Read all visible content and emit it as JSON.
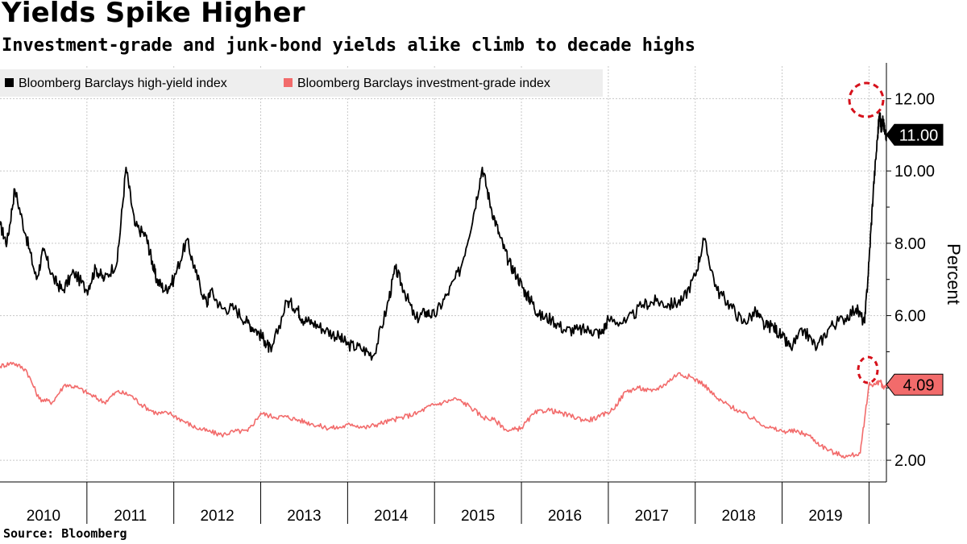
{
  "header": {
    "title": "Yields Spike Higher",
    "subtitle": "Investment-grade and junk-bond yields alike climb to decade highs"
  },
  "footer": {
    "source": "Source: Bloomberg"
  },
  "colors": {
    "high_yield": "#000000",
    "investment_grade": "#f26b6b",
    "highlight_circle": "#d6111b",
    "legend_bg": "#eeeeee",
    "grid": "#c8c8c8"
  },
  "chart_data": {
    "type": "line",
    "title": "Yields Spike Higher",
    "subtitle": "Investment-grade and junk-bond yields alike climb to decade highs",
    "xlabel": "",
    "ylabel": "Percent",
    "ylim": [
      1.4,
      12.9
    ],
    "xlim": [
      2010.0,
      2020.2
    ],
    "yticks": [
      2.0,
      6.0,
      8.0,
      10.0,
      12.0
    ],
    "ytick_labels": [
      "2.00",
      "6.00",
      "8.00",
      "10.00",
      "12.00"
    ],
    "x_categories": [
      "2010",
      "2011",
      "2012",
      "2013",
      "2014",
      "2015",
      "2016",
      "2017",
      "2018",
      "2019"
    ],
    "grid": true,
    "legend_position": "top-left",
    "series": [
      {
        "name": "Bloomberg Barclays high-yield index",
        "color": "#000000",
        "x": [
          2010.0,
          2010.08,
          2010.17,
          2010.3,
          2010.42,
          2010.5,
          2010.62,
          2010.72,
          2010.85,
          2011.0,
          2011.1,
          2011.2,
          2011.35,
          2011.45,
          2011.55,
          2011.68,
          2011.75,
          2011.8,
          2011.9,
          2012.0,
          2012.15,
          2012.25,
          2012.38,
          2012.42,
          2012.55,
          2012.7,
          2012.85,
          2012.95,
          2013.05,
          2013.12,
          2013.3,
          2013.42,
          2013.48,
          2013.6,
          2013.75,
          2013.9,
          2014.0,
          2014.15,
          2014.3,
          2014.45,
          2014.55,
          2014.65,
          2014.78,
          2014.9,
          2015.0,
          2015.15,
          2015.3,
          2015.45,
          2015.55,
          2015.65,
          2015.75,
          2015.85,
          2015.95,
          2016.05,
          2016.12,
          2016.2,
          2016.35,
          2016.5,
          2016.65,
          2016.8,
          2016.92,
          2017.0,
          2017.2,
          2017.4,
          2017.55,
          2017.7,
          2017.85,
          2018.0,
          2018.1,
          2018.25,
          2018.4,
          2018.55,
          2018.7,
          2018.8,
          2018.9,
          2019.0,
          2019.1,
          2019.25,
          2019.4,
          2019.55,
          2019.7,
          2019.85,
          2019.95,
          2020.0,
          2020.05,
          2020.1,
          2020.12,
          2020.14,
          2020.16,
          2020.18,
          2020.2
        ],
        "y": [
          8.5,
          8.0,
          9.5,
          8.2,
          7.0,
          7.8,
          7.0,
          6.7,
          7.2,
          6.7,
          7.3,
          7.0,
          7.5,
          10.1,
          8.5,
          8.2,
          7.5,
          7.0,
          6.7,
          7.0,
          8.1,
          7.2,
          6.3,
          6.7,
          6.2,
          6.2,
          5.8,
          5.6,
          5.3,
          5.0,
          6.4,
          6.2,
          5.9,
          5.8,
          5.6,
          5.4,
          5.2,
          5.1,
          4.9,
          6.2,
          7.3,
          6.7,
          5.9,
          6.1,
          6.0,
          6.6,
          7.3,
          8.8,
          10.1,
          9.0,
          8.2,
          7.5,
          7.1,
          6.6,
          6.4,
          6.0,
          5.9,
          5.6,
          5.6,
          5.6,
          5.5,
          5.9,
          5.8,
          6.3,
          6.4,
          6.3,
          6.4,
          7.1,
          8.1,
          6.7,
          6.3,
          5.8,
          6.1,
          5.7,
          5.7,
          5.4,
          5.1,
          5.6,
          5.1,
          5.7,
          5.9,
          6.2,
          5.8,
          7.5,
          9.5,
          11.0,
          11.6,
          11.2,
          11.4,
          11.1,
          11.0
        ]
      },
      {
        "name": "Bloomberg Barclays investment-grade index",
        "color": "#f26b6b",
        "x": [
          2010.0,
          2010.15,
          2010.3,
          2010.45,
          2010.6,
          2010.75,
          2010.9,
          2011.05,
          2011.2,
          2011.35,
          2011.5,
          2011.65,
          2011.8,
          2011.95,
          2012.1,
          2012.25,
          2012.4,
          2012.55,
          2012.7,
          2012.85,
          2013.0,
          2013.15,
          2013.3,
          2013.45,
          2013.6,
          2013.75,
          2013.9,
          2014.05,
          2014.2,
          2014.35,
          2014.5,
          2014.65,
          2014.8,
          2014.95,
          2015.1,
          2015.25,
          2015.4,
          2015.55,
          2015.7,
          2015.85,
          2016.0,
          2016.15,
          2016.3,
          2016.45,
          2016.6,
          2016.75,
          2016.9,
          2017.05,
          2017.2,
          2017.35,
          2017.5,
          2017.65,
          2017.8,
          2017.95,
          2018.1,
          2018.25,
          2018.4,
          2018.55,
          2018.7,
          2018.85,
          2019.0,
          2019.15,
          2019.3,
          2019.45,
          2019.6,
          2019.75,
          2019.9,
          2020.0,
          2020.08,
          2020.13,
          2020.16,
          2020.2
        ],
        "y": [
          4.6,
          4.7,
          4.5,
          3.7,
          3.6,
          4.1,
          4.0,
          3.8,
          3.6,
          3.9,
          3.8,
          3.5,
          3.3,
          3.3,
          3.1,
          2.9,
          2.8,
          2.7,
          2.8,
          2.8,
          3.3,
          3.2,
          3.2,
          3.1,
          3.0,
          2.9,
          2.9,
          3.0,
          2.9,
          3.0,
          3.1,
          3.2,
          3.3,
          3.5,
          3.6,
          3.7,
          3.5,
          3.2,
          3.1,
          2.8,
          2.9,
          3.3,
          3.4,
          3.3,
          3.2,
          3.1,
          3.2,
          3.4,
          3.9,
          4.0,
          3.9,
          4.1,
          4.4,
          4.3,
          4.1,
          3.7,
          3.5,
          3.3,
          3.1,
          2.9,
          2.8,
          2.8,
          2.7,
          2.4,
          2.2,
          2.1,
          2.2,
          4.1,
          4.1,
          4.2,
          4.0,
          4.09
        ]
      }
    ],
    "annotations": {
      "high_yield_last_value": "11.00",
      "investment_grade_last_value": "4.09"
    }
  }
}
